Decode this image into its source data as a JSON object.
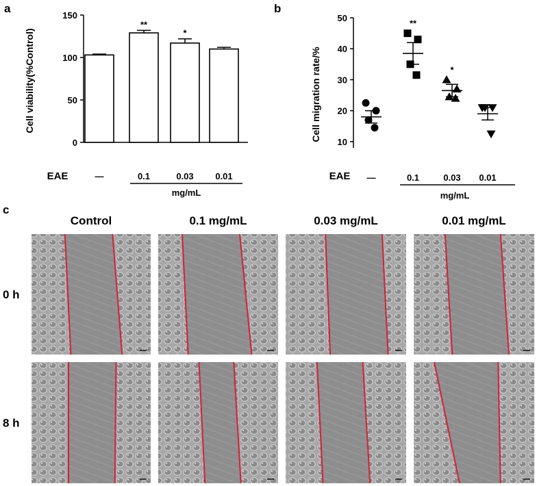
{
  "panels": {
    "a": "a",
    "b": "b",
    "c": "c"
  },
  "chart_data": [
    {
      "type": "bar",
      "panel": "a",
      "categories": [
        "—",
        "0.1",
        "0.03",
        "0.01"
      ],
      "values": [
        103,
        129,
        117,
        110
      ],
      "errors": [
        1,
        3,
        5,
        2
      ],
      "significance": [
        "",
        "**",
        "*",
        ""
      ],
      "ylabel": "Cell viability(%Control)",
      "yticks": [
        0,
        50,
        100,
        150
      ],
      "ylim": [
        0,
        150
      ],
      "group_label": "EAE",
      "unit_label": "mg/mL",
      "bar_fill": "#ffffff",
      "bar_stroke": "#000000"
    },
    {
      "type": "scatter",
      "panel": "b",
      "categories": [
        "—",
        "0.1",
        "0.03",
        "0.01"
      ],
      "series": [
        {
          "marker": "circle",
          "category": "—",
          "values": [
            22.5,
            20,
            17,
            14.5
          ],
          "mean": 18,
          "sem": 2
        },
        {
          "marker": "square",
          "category": "0.1",
          "values": [
            45,
            43,
            35,
            31.5
          ],
          "mean": 38.5,
          "sem": 3.5
        },
        {
          "marker": "triangle-up",
          "category": "0.03",
          "values": [
            30,
            27,
            24.5,
            24
          ],
          "mean": 26.5,
          "sem": 2
        },
        {
          "marker": "triangle-down",
          "category": "0.01",
          "values": [
            21,
            21,
            21,
            12.5
          ],
          "mean": 19,
          "sem": 2
        }
      ],
      "significance": [
        "",
        "**",
        "*",
        ""
      ],
      "ylabel": "Cell migration rate/%",
      "yticks": [
        10,
        20,
        30,
        40,
        50
      ],
      "ylim": [
        8,
        50
      ],
      "group_label": "EAE",
      "unit_label": "mg/mL",
      "marker_color": "#000000"
    }
  ],
  "images": {
    "columns": [
      "Control",
      "0.1 mg/mL",
      "0.03 mg/mL",
      "0.01 mg/mL"
    ],
    "rows": [
      "0 h",
      "8 h"
    ],
    "line_color": "#d0223a"
  }
}
